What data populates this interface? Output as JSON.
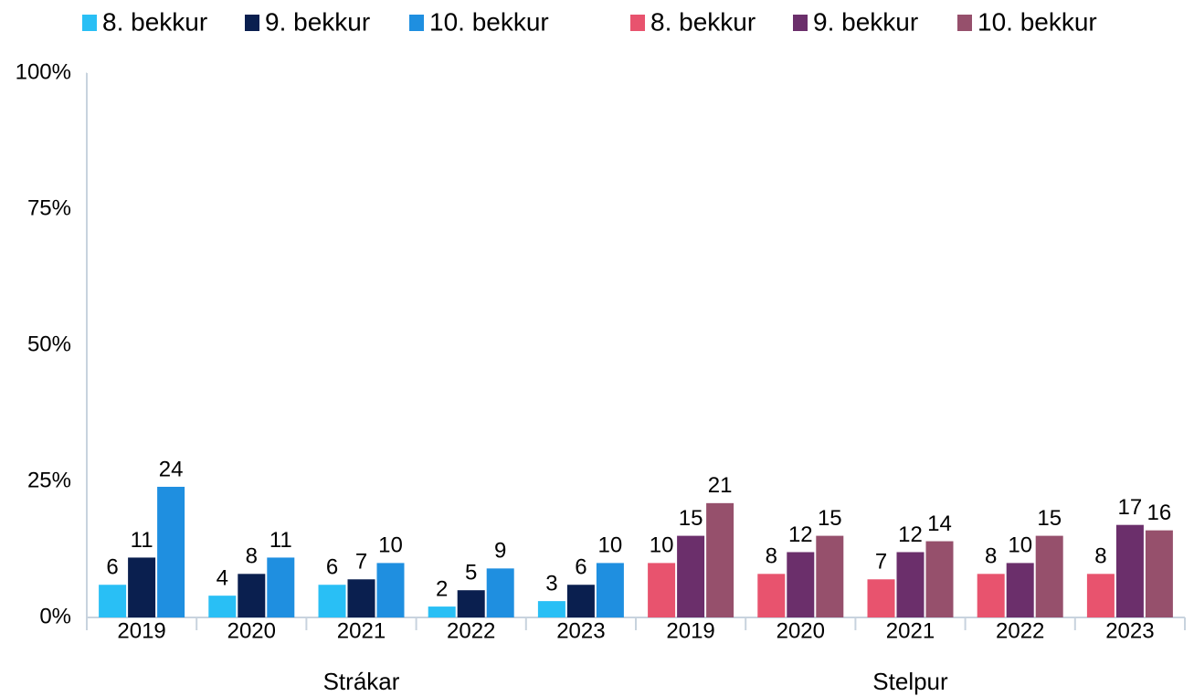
{
  "chart_data": {
    "type": "bar",
    "ylim": [
      0,
      100
    ],
    "yticks": [
      {
        "value": 0,
        "label": "0%"
      },
      {
        "value": 25,
        "label": "25%"
      },
      {
        "value": 50,
        "label": "50%"
      },
      {
        "value": 75,
        "label": "75%"
      },
      {
        "value": 100,
        "label": "100%"
      }
    ],
    "groups": [
      {
        "name": "Strákar",
        "categories": [
          "2019",
          "2020",
          "2021",
          "2022",
          "2023"
        ],
        "series": [
          {
            "name": "8. bekkur",
            "color": "#29bff5",
            "values": [
              6,
              4,
              6,
              2,
              3
            ]
          },
          {
            "name": "9. bekkur",
            "color": "#0a1f4f",
            "values": [
              11,
              8,
              7,
              5,
              6
            ]
          },
          {
            "name": "10. bekkur",
            "color": "#1f8fe0",
            "values": [
              24,
              11,
              10,
              9,
              10
            ]
          }
        ]
      },
      {
        "name": "Stelpur",
        "categories": [
          "2019",
          "2020",
          "2021",
          "2022",
          "2023"
        ],
        "series": [
          {
            "name": "8. bekkur",
            "color": "#e8536e",
            "values": [
              10,
              8,
              7,
              8,
              8
            ]
          },
          {
            "name": "9. bekkur",
            "color": "#6b2f6b",
            "values": [
              15,
              12,
              12,
              10,
              17
            ]
          },
          {
            "name": "10. bekkur",
            "color": "#96506c",
            "values": [
              21,
              15,
              14,
              15,
              16
            ]
          }
        ]
      }
    ]
  }
}
